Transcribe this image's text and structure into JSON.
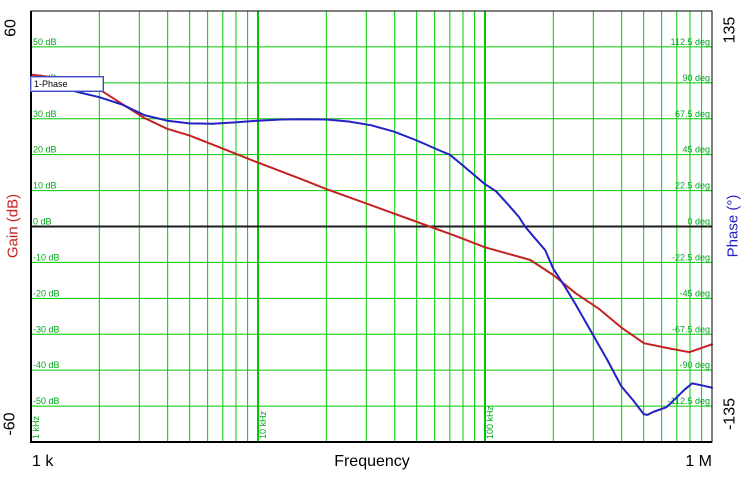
{
  "colors": {
    "grid_green": "#00c800",
    "label_green": "#00a51e",
    "gain_curve": "#c42221",
    "phase_curve": "#2222c4",
    "zero_line": "#1c1c1c",
    "frame": "#000000",
    "background": "#ffffff"
  },
  "chart_data": {
    "type": "line",
    "title": "",
    "x_axis": {
      "label": "Frequency",
      "scale": "log",
      "min_hz": 1000,
      "max_hz": 1000000,
      "min_label": "1 k",
      "max_label": "1 M",
      "decade_markers": [
        {
          "hz": 1000,
          "label": "1 kHz"
        },
        {
          "hz": 10000,
          "label": "10 kHz"
        },
        {
          "hz": 100000,
          "label": "100 kHz"
        }
      ]
    },
    "left_axis": {
      "label": "Gain (dB)",
      "min": -60,
      "max": 60,
      "top_label": "60",
      "bottom_label": "-60",
      "gridlines": [
        {
          "value": 50,
          "label": "50 dB"
        },
        {
          "value": 40,
          "label": "40 dB"
        },
        {
          "value": 30,
          "label": "30 dB"
        },
        {
          "value": 20,
          "label": "20 dB"
        },
        {
          "value": 10,
          "label": "10 dB"
        },
        {
          "value": 0,
          "label": "0 dB"
        },
        {
          "value": -10,
          "label": "-10 dB"
        },
        {
          "value": -20,
          "label": "-20 dB"
        },
        {
          "value": -30,
          "label": "-30 dB"
        },
        {
          "value": -40,
          "label": "-40 dB"
        },
        {
          "value": -50,
          "label": "-50 dB"
        }
      ]
    },
    "right_axis": {
      "label": "Phase (°)",
      "min": -135,
      "max": 135,
      "top_label": "135",
      "bottom_label": "-135",
      "gridlines": [
        {
          "value": 112.5,
          "label": "112.5 deg"
        },
        {
          "value": 90,
          "label": "90 deg"
        },
        {
          "value": 67.5,
          "label": "67.5 deg"
        },
        {
          "value": 45,
          "label": "45 deg"
        },
        {
          "value": 22.5,
          "label": "22.5 deg"
        },
        {
          "value": 0,
          "label": "0 deg"
        },
        {
          "value": -22.5,
          "label": "-22.5 deg"
        },
        {
          "value": -45,
          "label": "-45 deg"
        },
        {
          "value": -67.5,
          "label": "-67.5 deg"
        },
        {
          "value": -90,
          "label": "-90 deg"
        },
        {
          "value": -112.5,
          "label": "-112.5 deg"
        }
      ]
    },
    "curve_tag": {
      "label": "1-Phase"
    },
    "series": [
      {
        "name": "Gain",
        "axis": "left",
        "color": "#c42221",
        "points": [
          [
            1000,
            42.3
          ],
          [
            1260,
            41.5
          ],
          [
            1580,
            40.3
          ],
          [
            2000,
            38.2
          ],
          [
            2510,
            34.2
          ],
          [
            3160,
            30.2
          ],
          [
            3980,
            27.2
          ],
          [
            5000,
            25.3
          ],
          [
            6310,
            22.8
          ],
          [
            7940,
            20.3
          ],
          [
            10000,
            17.8
          ],
          [
            15800,
            13.0
          ],
          [
            20000,
            10.4
          ],
          [
            31600,
            5.9
          ],
          [
            57000,
            0
          ],
          [
            74000,
            -2.6
          ],
          [
            100000,
            -5.8
          ],
          [
            158000,
            -9.3
          ],
          [
            200000,
            -13.5
          ],
          [
            251000,
            -18.6
          ],
          [
            316000,
            -22.8
          ],
          [
            398000,
            -28.1
          ],
          [
            501000,
            -32.5
          ],
          [
            631000,
            -33.8
          ],
          [
            794000,
            -35.0
          ],
          [
            1000000,
            -32.8
          ]
        ]
      },
      {
        "name": "Phase",
        "axis": "right",
        "color": "#2222c4",
        "points": [
          [
            1000,
            92.5
          ],
          [
            1260,
            88.5
          ],
          [
            1580,
            84.5
          ],
          [
            2000,
            81
          ],
          [
            2510,
            76.5
          ],
          [
            3160,
            69.8
          ],
          [
            3980,
            66.3
          ],
          [
            5000,
            64.6
          ],
          [
            6310,
            64.4
          ],
          [
            7940,
            65.2
          ],
          [
            10000,
            66.3
          ],
          [
            12600,
            67.0
          ],
          [
            15800,
            67.2
          ],
          [
            20000,
            67.0
          ],
          [
            25100,
            65.8
          ],
          [
            31600,
            63.4
          ],
          [
            39800,
            59.4
          ],
          [
            50100,
            53.9
          ],
          [
            63100,
            47.6
          ],
          [
            70000,
            45.0
          ],
          [
            79400,
            38.5
          ],
          [
            100000,
            26.5
          ],
          [
            112000,
            22.0
          ],
          [
            126000,
            14.0
          ],
          [
            141000,
            6.0
          ],
          [
            150000,
            0
          ],
          [
            166000,
            -7.4
          ],
          [
            184000,
            -14.7
          ],
          [
            200000,
            -26.5
          ],
          [
            225000,
            -37.7
          ],
          [
            250000,
            -48.5
          ],
          [
            296000,
            -66.8
          ],
          [
            347000,
            -84.0
          ],
          [
            398000,
            -100.0
          ],
          [
            450000,
            -109.0
          ],
          [
            500000,
            -117.5
          ],
          [
            520000,
            -118.0
          ],
          [
            550000,
            -116.2
          ],
          [
            630000,
            -113.2
          ],
          [
            700000,
            -107.0
          ],
          [
            760000,
            -102.0
          ],
          [
            818000,
            -98.3
          ],
          [
            900000,
            -99.5
          ],
          [
            1000000,
            -101.0
          ]
        ]
      }
    ]
  }
}
